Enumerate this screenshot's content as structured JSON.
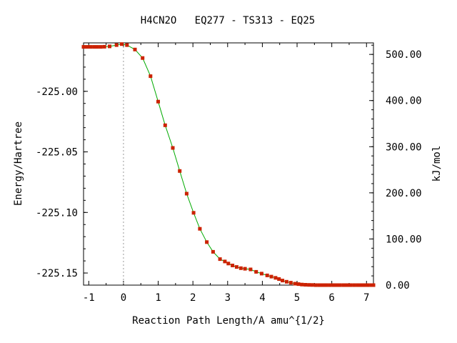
{
  "chart_data": {
    "type": "line",
    "title": "H4CN2O   EQ277 - TS313 - EQ25",
    "xlabel": "Reaction Path Length/A amu^{1/2}",
    "ylabel": "Energy/Hartree",
    "y2label": "kJ/mol",
    "xlim": [
      -1.15,
      7.2
    ],
    "ylim": [
      -225.16,
      -224.96
    ],
    "y2lim": [
      0,
      525
    ],
    "x_ticks": [
      -1,
      0,
      1,
      2,
      3,
      4,
      5,
      6,
      7
    ],
    "x_tick_labels": [
      "-1",
      "0",
      "1",
      "2",
      "3",
      "4",
      "5",
      "6",
      "7"
    ],
    "y_ticks": [
      -225.0,
      -225.05,
      -225.1,
      -225.15
    ],
    "y_tick_labels": [
      "-225.00",
      "-225.05",
      "-225.10",
      "-225.15"
    ],
    "y2_ticks": [
      0,
      100,
      200,
      300,
      400,
      500
    ],
    "y2_tick_labels": [
      "0.00",
      "100.00",
      "200.00",
      "300.00",
      "400.00",
      "500.00"
    ],
    "ts_marker_x": 0,
    "grid": false,
    "colors": {
      "line": "#00aa00",
      "points": "#cc2200",
      "marker": "#999999"
    },
    "series": [
      {
        "x": [
          -1.15,
          -1.05,
          -0.95,
          -0.85,
          -0.75,
          -0.65,
          -0.55,
          -0.4,
          -0.2,
          -0.05,
          0.1,
          0.33,
          0.55,
          0.78,
          1.0,
          1.2,
          1.42,
          1.62,
          1.82,
          2.02,
          2.2,
          2.4,
          2.58,
          2.78,
          2.92,
          3.02,
          3.14,
          3.26,
          3.38,
          3.5,
          3.66,
          3.82,
          3.98,
          4.14,
          4.26,
          4.38,
          4.48,
          4.58,
          4.7,
          4.82,
          4.94,
          5.04,
          5.14,
          5.24,
          5.34,
          5.44,
          5.54,
          5.64,
          5.74,
          5.84,
          5.94,
          6.04,
          6.14,
          6.24,
          6.34,
          6.44,
          6.54,
          6.64,
          6.74,
          6.84,
          6.94,
          7.04,
          7.14,
          7.2
        ],
        "y": [
          -224.9633,
          -224.9633,
          -224.9633,
          -224.9633,
          -224.9633,
          -224.9633,
          -224.9632,
          -224.9629,
          -224.9618,
          -224.961,
          -224.9618,
          -224.9655,
          -224.9725,
          -224.9875,
          -225.0085,
          -225.028,
          -225.0467,
          -225.0658,
          -225.0845,
          -225.1003,
          -225.1135,
          -225.1245,
          -225.1325,
          -225.1385,
          -225.1405,
          -225.1422,
          -225.1438,
          -225.145,
          -225.146,
          -225.1465,
          -225.147,
          -225.149,
          -225.1505,
          -225.152,
          -225.153,
          -225.154,
          -225.155,
          -225.1562,
          -225.1572,
          -225.158,
          -225.1588,
          -225.1592,
          -225.1595,
          -225.1597,
          -225.1598,
          -225.1599,
          -225.16,
          -225.16,
          -225.16,
          -225.16,
          -225.16,
          -225.16,
          -225.16,
          -225.16,
          -225.16,
          -225.16,
          -225.16,
          -225.16,
          -225.16,
          -225.16,
          -225.16,
          -225.16,
          -225.16,
          -225.16
        ]
      }
    ]
  }
}
